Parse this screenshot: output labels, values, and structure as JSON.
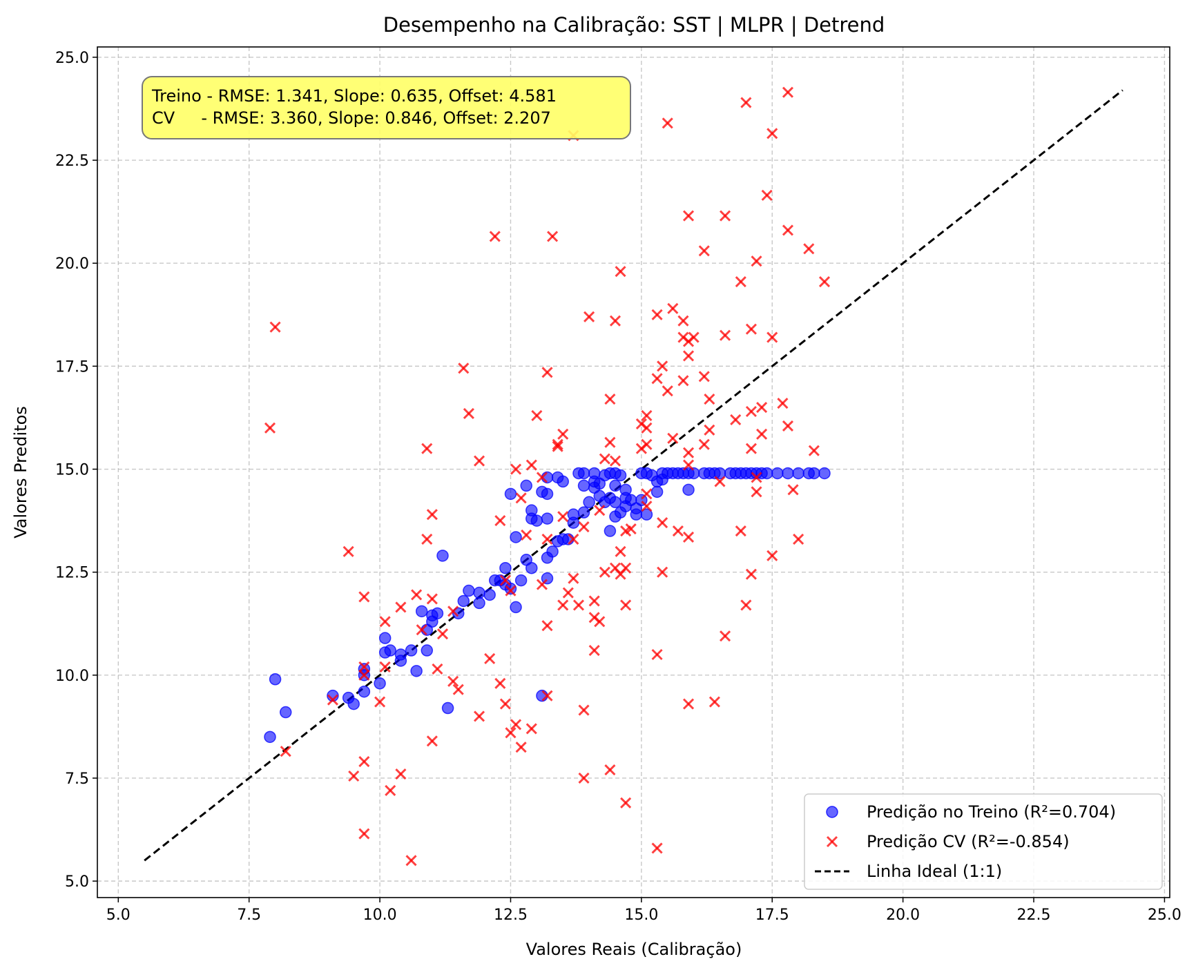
{
  "chart_data": {
    "type": "scatter",
    "title": "Desempenho na Calibração: SST | MLPR | Detrend",
    "xlabel": "Valores Reais (Calibração)",
    "ylabel": "Valores Preditos",
    "xlim": [
      4.6,
      25.1
    ],
    "ylim": [
      4.6,
      25.25
    ],
    "x_ticks": [
      "5.0",
      "7.5",
      "10.0",
      "12.5",
      "15.0",
      "17.5",
      "20.0",
      "22.5",
      "25.0"
    ],
    "y_ticks": [
      "5.0",
      "7.5",
      "10.0",
      "12.5",
      "15.0",
      "17.5",
      "20.0",
      "22.5",
      "25.0"
    ],
    "grid": true,
    "legend_position": "bottom-right",
    "annotation": {
      "line1": "Treino - RMSE: 1.341, Slope: 0.635, Offset: 4.581",
      "line2": "CV     - RMSE: 3.360, Slope: 0.846, Offset: 2.207",
      "background": "#ffff66",
      "position": "top-left"
    },
    "series": [
      {
        "name": "Predição no Treino (R²=0.704)",
        "marker": "circle",
        "color": "#0000ff",
        "points": [
          [
            7.9,
            8.5
          ],
          [
            8.0,
            9.9
          ],
          [
            8.2,
            9.1
          ],
          [
            9.1,
            9.5
          ],
          [
            9.4,
            9.45
          ],
          [
            9.5,
            9.3
          ],
          [
            9.7,
            9.6
          ],
          [
            9.7,
            10.0
          ],
          [
            9.7,
            10.15
          ],
          [
            10.0,
            9.8
          ],
          [
            10.1,
            10.9
          ],
          [
            10.1,
            10.55
          ],
          [
            10.2,
            10.6
          ],
          [
            10.4,
            10.35
          ],
          [
            10.4,
            10.5
          ],
          [
            10.6,
            10.6
          ],
          [
            10.7,
            10.1
          ],
          [
            10.8,
            11.55
          ],
          [
            10.9,
            10.6
          ],
          [
            10.9,
            11.1
          ],
          [
            11.0,
            11.3
          ],
          [
            11.0,
            11.45
          ],
          [
            11.1,
            11.5
          ],
          [
            11.2,
            12.9
          ],
          [
            11.3,
            9.2
          ],
          [
            11.5,
            11.5
          ],
          [
            11.6,
            11.8
          ],
          [
            11.7,
            12.05
          ],
          [
            11.9,
            11.75
          ],
          [
            11.9,
            12.0
          ],
          [
            12.1,
            11.95
          ],
          [
            12.2,
            12.3
          ],
          [
            12.3,
            12.3
          ],
          [
            12.4,
            12.6
          ],
          [
            12.4,
            12.2
          ],
          [
            12.5,
            12.1
          ],
          [
            12.5,
            14.4
          ],
          [
            12.6,
            13.35
          ],
          [
            12.6,
            11.65
          ],
          [
            12.7,
            12.3
          ],
          [
            12.8,
            12.8
          ],
          [
            12.8,
            14.6
          ],
          [
            12.9,
            14.0
          ],
          [
            12.9,
            13.8
          ],
          [
            12.9,
            12.6
          ],
          [
            13.0,
            13.75
          ],
          [
            13.1,
            14.45
          ],
          [
            13.1,
            9.5
          ],
          [
            13.2,
            14.8
          ],
          [
            13.2,
            14.4
          ],
          [
            13.2,
            13.8
          ],
          [
            13.2,
            12.85
          ],
          [
            13.2,
            12.35
          ],
          [
            13.3,
            13.0
          ],
          [
            13.4,
            14.8
          ],
          [
            13.4,
            13.25
          ],
          [
            13.5,
            14.7
          ],
          [
            13.5,
            13.3
          ],
          [
            13.6,
            13.3
          ],
          [
            13.7,
            13.7
          ],
          [
            13.7,
            13.9
          ],
          [
            13.8,
            14.9
          ],
          [
            13.9,
            14.9
          ],
          [
            13.9,
            14.6
          ],
          [
            13.9,
            13.95
          ],
          [
            14.0,
            14.2
          ],
          [
            14.1,
            14.9
          ],
          [
            14.1,
            14.7
          ],
          [
            14.1,
            14.55
          ],
          [
            14.2,
            14.65
          ],
          [
            14.2,
            14.35
          ],
          [
            14.3,
            14.85
          ],
          [
            14.3,
            14.2
          ],
          [
            14.4,
            14.9
          ],
          [
            14.4,
            14.3
          ],
          [
            14.4,
            13.5
          ],
          [
            14.5,
            14.9
          ],
          [
            14.5,
            14.6
          ],
          [
            14.5,
            14.2
          ],
          [
            14.5,
            13.85
          ],
          [
            14.6,
            14.85
          ],
          [
            14.6,
            13.95
          ],
          [
            14.7,
            14.5
          ],
          [
            14.7,
            14.3
          ],
          [
            14.7,
            14.1
          ],
          [
            14.8,
            14.25
          ],
          [
            14.9,
            13.9
          ],
          [
            14.9,
            14.05
          ],
          [
            15.0,
            14.9
          ],
          [
            15.0,
            14.25
          ],
          [
            15.1,
            14.9
          ],
          [
            15.1,
            13.9
          ],
          [
            15.2,
            14.85
          ],
          [
            15.3,
            14.7
          ],
          [
            15.3,
            14.45
          ],
          [
            15.4,
            14.9
          ],
          [
            15.4,
            14.75
          ],
          [
            15.5,
            14.9
          ],
          [
            15.6,
            14.9
          ],
          [
            15.7,
            14.9
          ],
          [
            15.8,
            14.9
          ],
          [
            15.9,
            14.9
          ],
          [
            15.9,
            14.5
          ],
          [
            16.0,
            14.9
          ],
          [
            16.2,
            14.9
          ],
          [
            16.3,
            14.9
          ],
          [
            16.4,
            14.9
          ],
          [
            16.5,
            14.9
          ],
          [
            16.7,
            14.9
          ],
          [
            16.8,
            14.9
          ],
          [
            16.9,
            14.9
          ],
          [
            17.0,
            14.9
          ],
          [
            17.1,
            14.9
          ],
          [
            17.2,
            14.9
          ],
          [
            17.3,
            14.9
          ],
          [
            17.4,
            14.9
          ],
          [
            17.6,
            14.9
          ],
          [
            17.8,
            14.9
          ],
          [
            18.0,
            14.9
          ],
          [
            18.2,
            14.9
          ],
          [
            18.3,
            14.9
          ],
          [
            18.5,
            14.9
          ]
        ]
      },
      {
        "name": "Predição CV (R²=-0.854)",
        "marker": "x",
        "color": "#ff0000",
        "points": [
          [
            7.9,
            16.0
          ],
          [
            8.0,
            18.45
          ],
          [
            8.2,
            8.15
          ],
          [
            9.1,
            9.4
          ],
          [
            9.4,
            13.0
          ],
          [
            9.5,
            7.55
          ],
          [
            9.7,
            11.9
          ],
          [
            9.7,
            10.2
          ],
          [
            9.7,
            10.0
          ],
          [
            9.7,
            7.9
          ],
          [
            9.7,
            6.15
          ],
          [
            10.0,
            9.35
          ],
          [
            10.1,
            11.3
          ],
          [
            10.1,
            10.2
          ],
          [
            10.2,
            7.2
          ],
          [
            10.4,
            11.65
          ],
          [
            10.4,
            7.6
          ],
          [
            10.6,
            5.5
          ],
          [
            10.7,
            11.95
          ],
          [
            10.8,
            11.1
          ],
          [
            10.9,
            15.5
          ],
          [
            10.9,
            13.3
          ],
          [
            11.0,
            13.9
          ],
          [
            11.0,
            11.85
          ],
          [
            11.0,
            8.4
          ],
          [
            11.1,
            10.15
          ],
          [
            11.2,
            11.0
          ],
          [
            11.4,
            11.55
          ],
          [
            11.4,
            9.85
          ],
          [
            11.5,
            9.65
          ],
          [
            11.6,
            17.45
          ],
          [
            11.7,
            16.35
          ],
          [
            11.9,
            15.2
          ],
          [
            11.9,
            9.0
          ],
          [
            12.1,
            10.4
          ],
          [
            12.2,
            20.65
          ],
          [
            12.3,
            13.75
          ],
          [
            12.3,
            9.8
          ],
          [
            12.4,
            12.3
          ],
          [
            12.4,
            9.3
          ],
          [
            12.5,
            12.05
          ],
          [
            12.5,
            8.6
          ],
          [
            12.6,
            15.0
          ],
          [
            12.6,
            8.8
          ],
          [
            12.7,
            14.3
          ],
          [
            12.7,
            8.25
          ],
          [
            12.8,
            13.4
          ],
          [
            12.9,
            15.1
          ],
          [
            12.9,
            8.7
          ],
          [
            13.0,
            16.3
          ],
          [
            13.1,
            14.8
          ],
          [
            13.1,
            12.2
          ],
          [
            13.2,
            17.35
          ],
          [
            13.2,
            13.3
          ],
          [
            13.2,
            11.2
          ],
          [
            13.2,
            9.5
          ],
          [
            13.3,
            20.65
          ],
          [
            13.4,
            15.55
          ],
          [
            13.4,
            15.6
          ],
          [
            13.5,
            15.85
          ],
          [
            13.5,
            13.85
          ],
          [
            13.5,
            11.7
          ],
          [
            13.6,
            12.0
          ],
          [
            13.7,
            23.1
          ],
          [
            13.7,
            13.3
          ],
          [
            13.7,
            12.35
          ],
          [
            13.8,
            11.7
          ],
          [
            13.9,
            13.6
          ],
          [
            13.9,
            9.15
          ],
          [
            13.9,
            7.5
          ],
          [
            14.0,
            18.7
          ],
          [
            14.1,
            11.8
          ],
          [
            14.1,
            11.4
          ],
          [
            14.1,
            10.6
          ],
          [
            14.2,
            14.0
          ],
          [
            14.2,
            11.3
          ],
          [
            14.3,
            15.25
          ],
          [
            14.3,
            12.5
          ],
          [
            14.4,
            16.7
          ],
          [
            14.4,
            15.65
          ],
          [
            14.4,
            7.7
          ],
          [
            14.5,
            18.6
          ],
          [
            14.5,
            15.2
          ],
          [
            14.5,
            12.6
          ],
          [
            14.6,
            19.8
          ],
          [
            14.6,
            13.0
          ],
          [
            14.6,
            12.45
          ],
          [
            14.7,
            13.5
          ],
          [
            14.7,
            12.6
          ],
          [
            14.7,
            11.7
          ],
          [
            14.7,
            6.9
          ],
          [
            14.8,
            13.55
          ],
          [
            15.0,
            16.1
          ],
          [
            15.0,
            15.5
          ],
          [
            15.1,
            16.3
          ],
          [
            15.1,
            16.0
          ],
          [
            15.1,
            15.6
          ],
          [
            15.1,
            14.4
          ],
          [
            15.1,
            14.1
          ],
          [
            15.3,
            18.75
          ],
          [
            15.3,
            17.2
          ],
          [
            15.3,
            10.5
          ],
          [
            15.3,
            5.8
          ],
          [
            15.4,
            17.5
          ],
          [
            15.4,
            13.7
          ],
          [
            15.4,
            12.5
          ],
          [
            15.5,
            23.4
          ],
          [
            15.5,
            16.9
          ],
          [
            15.6,
            18.9
          ],
          [
            15.6,
            15.75
          ],
          [
            15.7,
            13.5
          ],
          [
            15.8,
            18.6
          ],
          [
            15.8,
            18.2
          ],
          [
            15.8,
            17.15
          ],
          [
            15.9,
            21.15
          ],
          [
            15.9,
            18.1
          ],
          [
            15.9,
            17.75
          ],
          [
            15.9,
            15.4
          ],
          [
            15.9,
            15.1
          ],
          [
            15.9,
            13.35
          ],
          [
            15.9,
            9.3
          ],
          [
            16.0,
            18.2
          ],
          [
            16.2,
            20.3
          ],
          [
            16.2,
            17.25
          ],
          [
            16.2,
            15.6
          ],
          [
            16.3,
            16.7
          ],
          [
            16.3,
            15.95
          ],
          [
            16.4,
            9.35
          ],
          [
            16.5,
            14.7
          ],
          [
            16.6,
            21.15
          ],
          [
            16.6,
            18.25
          ],
          [
            16.6,
            10.95
          ],
          [
            16.8,
            16.2
          ],
          [
            16.9,
            19.55
          ],
          [
            16.9,
            13.5
          ],
          [
            17.0,
            23.9
          ],
          [
            17.0,
            11.7
          ],
          [
            17.1,
            18.4
          ],
          [
            17.1,
            16.4
          ],
          [
            17.1,
            15.5
          ],
          [
            17.1,
            12.45
          ],
          [
            17.2,
            20.05
          ],
          [
            17.2,
            14.8
          ],
          [
            17.2,
            14.45
          ],
          [
            17.3,
            16.5
          ],
          [
            17.3,
            15.85
          ],
          [
            17.4,
            21.65
          ],
          [
            17.5,
            23.15
          ],
          [
            17.5,
            18.2
          ],
          [
            17.5,
            12.9
          ],
          [
            17.7,
            16.6
          ],
          [
            17.8,
            24.15
          ],
          [
            17.8,
            20.8
          ],
          [
            17.8,
            16.05
          ],
          [
            17.9,
            14.5
          ],
          [
            18.0,
            13.3
          ],
          [
            18.2,
            20.35
          ],
          [
            18.3,
            15.45
          ],
          [
            18.5,
            19.55
          ]
        ]
      },
      {
        "name": "Linha Ideal (1:1)",
        "type": "line",
        "style": "dashed",
        "color": "#000000",
        "points": [
          [
            5.5,
            5.5
          ],
          [
            24.2,
            24.2
          ]
        ]
      }
    ]
  }
}
